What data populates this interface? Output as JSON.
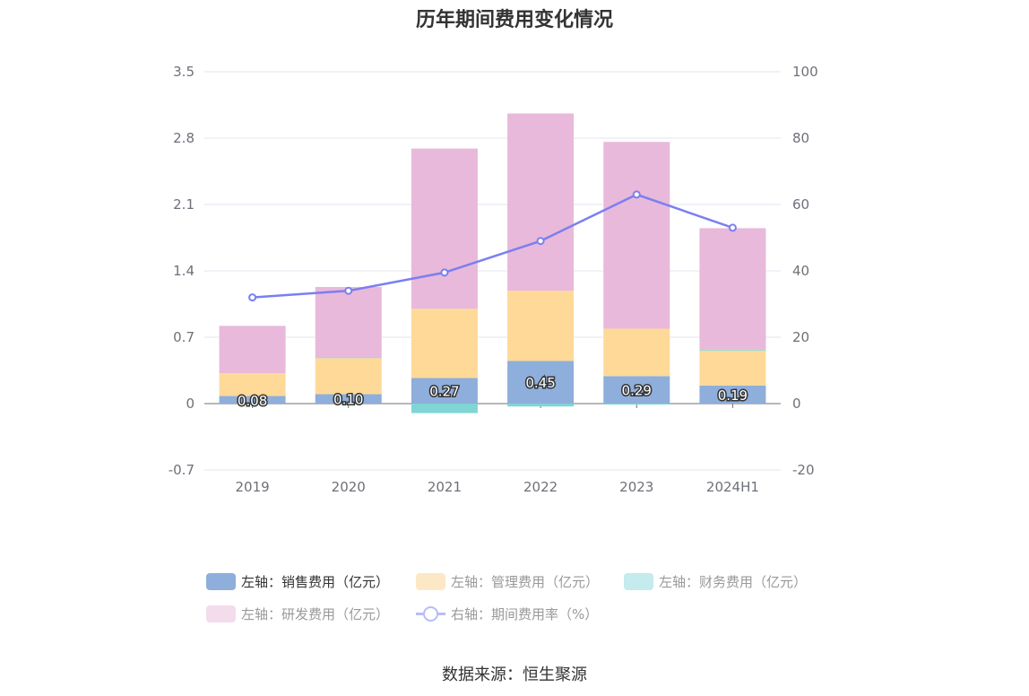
{
  "chart_data": {
    "type": "bar",
    "stacked": true,
    "title": "历年期间费用变化情况",
    "categories": [
      "2019",
      "2020",
      "2021",
      "2022",
      "2023",
      "2024H1"
    ],
    "y_left": {
      "min": -0.7,
      "max": 3.5,
      "ticks": [
        "3.5",
        "2.8",
        "2.1",
        "1.4",
        "0.7",
        "0",
        "-0.7"
      ]
    },
    "y_right": {
      "min": -20,
      "max": 100,
      "ticks": [
        "100",
        "80",
        "60",
        "40",
        "20",
        "0",
        "-20"
      ]
    },
    "series": [
      {
        "name": "左轴：销售费用（亿元）",
        "type": "bar",
        "axis": "left",
        "color": "#8eaedb",
        "values": [
          0.08,
          0.1,
          0.27,
          0.45,
          0.29,
          0.19
        ],
        "labels": [
          "0.08",
          "0.10",
          "0.27",
          "0.45",
          "0.29",
          "0.19"
        ]
      },
      {
        "name": "左轴：管理费用（亿元）",
        "type": "bar",
        "axis": "left",
        "color": "#ffd998",
        "values": [
          0.24,
          0.38,
          0.73,
          0.74,
          0.5,
          0.37
        ]
      },
      {
        "name": "左轴：财务费用（亿元）",
        "type": "bar",
        "axis": "left",
        "color": "#7fd6d5",
        "values": [
          0.0,
          0.01,
          -0.1,
          -0.03,
          -0.01,
          0.01
        ]
      },
      {
        "name": "左轴：研发费用（亿元）",
        "type": "bar",
        "axis": "left",
        "color": "#e8b9da",
        "values": [
          0.5,
          0.74,
          1.69,
          1.87,
          1.97,
          1.28
        ]
      },
      {
        "name": "右轴：期间费用率（%）",
        "type": "line",
        "axis": "right",
        "color": "#7b7ff0",
        "values": [
          32.0,
          34.0,
          39.5,
          49.0,
          63.0,
          53.0
        ]
      }
    ]
  },
  "legend": [
    {
      "label": "左轴：销售费用（亿元）",
      "color": "#8eaedb",
      "kind": "box"
    },
    {
      "label": "左轴：管理费用（亿元）",
      "color": "#fde8c6",
      "kind": "box"
    },
    {
      "label": "左轴：财务费用（亿元）",
      "color": "#c4ebee",
      "kind": "box"
    },
    {
      "label": "左轴：研发费用（亿元）",
      "color": "#f3dcec",
      "kind": "box"
    },
    {
      "label": "右轴：期间费用率（%）",
      "color": "#b9bcf6",
      "kind": "line"
    }
  ],
  "source": "数据来源：恒生聚源"
}
